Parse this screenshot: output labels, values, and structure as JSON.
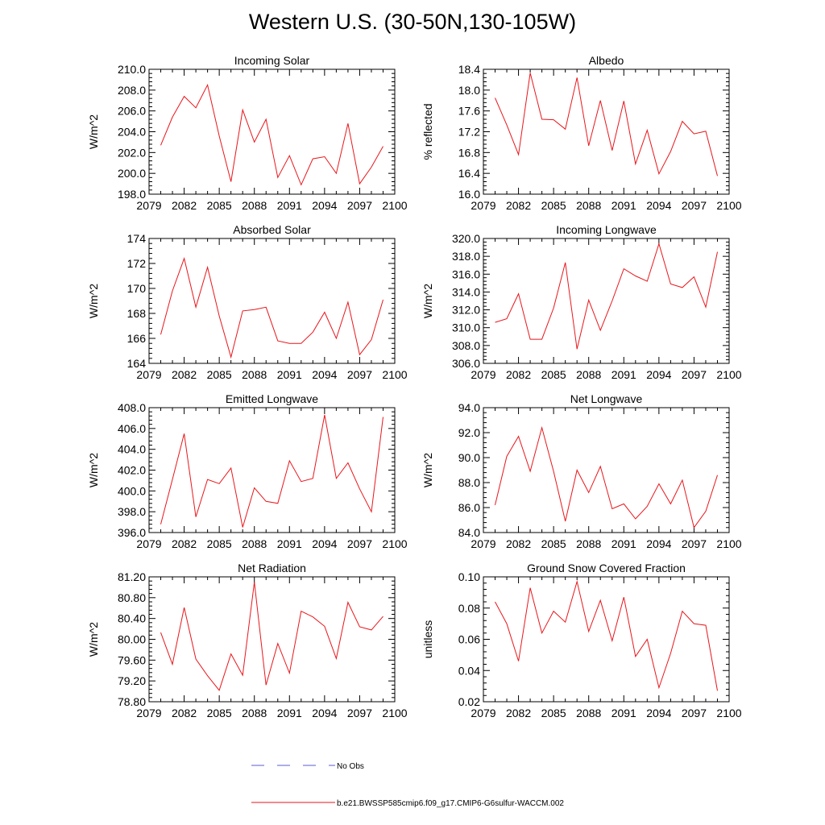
{
  "page_title": "Western U.S. (30-50N,130-105W)",
  "legend": {
    "obs_label": "No Obs",
    "obs_color": "#5b5bd6",
    "model_label": "b.e21.BWSSP585cmip6.f09_g17.CMIP6-G6sulfur-WACCM.002",
    "model_color": "#e8161b"
  },
  "chart_data": [
    {
      "type": "line",
      "title": "Incoming Solar",
      "ylabel": "W/m^2",
      "xlim": [
        2079,
        2100
      ],
      "xticks": [
        2079,
        2082,
        2085,
        2088,
        2091,
        2094,
        2097,
        2100
      ],
      "ylim": [
        198.0,
        210.0
      ],
      "yticks": [
        "198.0",
        "200.0",
        "202.0",
        "204.0",
        "206.0",
        "208.0",
        "210.0"
      ],
      "series": [
        {
          "x": [
            2080,
            2081,
            2082,
            2083,
            2084,
            2085,
            2086,
            2087,
            2088,
            2089,
            2090,
            2091,
            2092,
            2093,
            2094,
            2095,
            2096,
            2097,
            2098,
            2099
          ],
          "values": [
            202.7,
            205.4,
            207.4,
            206.3,
            208.5,
            203.6,
            199.2,
            206.1,
            203.0,
            205.2,
            199.6,
            201.7,
            198.9,
            201.4,
            201.6,
            200.0,
            204.8,
            199.0,
            200.6,
            202.6
          ]
        }
      ]
    },
    {
      "type": "line",
      "title": "Albedo",
      "ylabel": "% reflected",
      "xlim": [
        2079,
        2100
      ],
      "xticks": [
        2079,
        2082,
        2085,
        2088,
        2091,
        2094,
        2097,
        2100
      ],
      "ylim": [
        16.0,
        18.4
      ],
      "yticks": [
        "16.0",
        "16.4",
        "16.8",
        "17.2",
        "17.6",
        "18.0",
        "18.4"
      ],
      "series": [
        {
          "x": [
            2080,
            2081,
            2082,
            2083,
            2084,
            2085,
            2086,
            2087,
            2088,
            2089,
            2090,
            2091,
            2092,
            2093,
            2094,
            2095,
            2096,
            2097,
            2098,
            2099
          ],
          "values": [
            17.85,
            17.33,
            16.76,
            18.33,
            17.44,
            17.43,
            17.25,
            18.24,
            16.93,
            17.8,
            16.84,
            17.79,
            16.58,
            17.23,
            16.39,
            16.82,
            17.4,
            17.16,
            17.21,
            16.35
          ]
        }
      ]
    },
    {
      "type": "line",
      "title": "Absorbed Solar",
      "ylabel": "W/m^2",
      "xlim": [
        2079,
        2100
      ],
      "xticks": [
        2079,
        2082,
        2085,
        2088,
        2091,
        2094,
        2097,
        2100
      ],
      "ylim": [
        164,
        174
      ],
      "yticks": [
        "164",
        "166",
        "168",
        "170",
        "172",
        "174"
      ],
      "series": [
        {
          "x": [
            2080,
            2081,
            2082,
            2083,
            2084,
            2085,
            2086,
            2087,
            2088,
            2089,
            2090,
            2091,
            2092,
            2093,
            2094,
            2095,
            2096,
            2097,
            2098,
            2099
          ],
          "values": [
            166.3,
            169.8,
            172.4,
            168.5,
            171.7,
            167.8,
            164.5,
            168.2,
            168.3,
            168.5,
            165.8,
            165.6,
            165.6,
            166.5,
            168.1,
            166.0,
            168.9,
            164.7,
            165.9,
            169.1
          ]
        }
      ]
    },
    {
      "type": "line",
      "title": "Incoming Longwave",
      "ylabel": "W/m^2",
      "xlim": [
        2079,
        2100
      ],
      "xticks": [
        2079,
        2082,
        2085,
        2088,
        2091,
        2094,
        2097,
        2100
      ],
      "ylim": [
        306.0,
        320.0
      ],
      "yticks": [
        "306.0",
        "308.0",
        "310.0",
        "312.0",
        "314.0",
        "316.0",
        "318.0",
        "320.0"
      ],
      "series": [
        {
          "x": [
            2080,
            2081,
            2082,
            2083,
            2084,
            2085,
            2086,
            2087,
            2088,
            2089,
            2090,
            2091,
            2092,
            2093,
            2094,
            2095,
            2096,
            2097,
            2098,
            2099
          ],
          "values": [
            310.6,
            311.0,
            313.8,
            308.7,
            308.7,
            312.2,
            317.3,
            307.6,
            313.1,
            309.7,
            313.0,
            316.6,
            315.8,
            315.2,
            319.4,
            314.9,
            314.5,
            315.7,
            312.3,
            318.5
          ]
        }
      ]
    },
    {
      "type": "line",
      "title": "Emitted Longwave",
      "ylabel": "W/m^2",
      "xlim": [
        2079,
        2100
      ],
      "xticks": [
        2079,
        2082,
        2085,
        2088,
        2091,
        2094,
        2097,
        2100
      ],
      "ylim": [
        396.0,
        408.0
      ],
      "yticks": [
        "396.0",
        "398.0",
        "400.0",
        "402.0",
        "404.0",
        "406.0",
        "408.0"
      ],
      "series": [
        {
          "x": [
            2080,
            2081,
            2082,
            2083,
            2084,
            2085,
            2086,
            2087,
            2088,
            2089,
            2090,
            2091,
            2092,
            2093,
            2094,
            2095,
            2096,
            2097,
            2098,
            2099
          ],
          "values": [
            396.8,
            401.1,
            405.5,
            397.5,
            401.1,
            400.7,
            402.2,
            396.5,
            400.3,
            399.0,
            398.8,
            402.9,
            400.9,
            401.2,
            407.3,
            401.2,
            402.7,
            400.2,
            398.0,
            407.1
          ]
        }
      ]
    },
    {
      "type": "line",
      "title": "Net Longwave",
      "ylabel": "W/m^2",
      "xlim": [
        2079,
        2100
      ],
      "xticks": [
        2079,
        2082,
        2085,
        2088,
        2091,
        2094,
        2097,
        2100
      ],
      "ylim": [
        84.0,
        94.0
      ],
      "yticks": [
        "84.0",
        "86.0",
        "88.0",
        "90.0",
        "92.0",
        "94.0"
      ],
      "series": [
        {
          "x": [
            2080,
            2081,
            2082,
            2083,
            2084,
            2085,
            2086,
            2087,
            2088,
            2089,
            2090,
            2091,
            2092,
            2093,
            2094,
            2095,
            2096,
            2097,
            2098,
            2099
          ],
          "values": [
            86.2,
            90.1,
            91.7,
            88.9,
            92.4,
            88.9,
            84.9,
            89.0,
            87.2,
            89.3,
            85.9,
            86.3,
            85.1,
            86.1,
            87.9,
            86.3,
            88.2,
            84.4,
            85.7,
            88.6
          ]
        }
      ]
    },
    {
      "type": "line",
      "title": "Net Radiation",
      "ylabel": "W/m^2",
      "xlim": [
        2079,
        2100
      ],
      "xticks": [
        2079,
        2082,
        2085,
        2088,
        2091,
        2094,
        2097,
        2100
      ],
      "ylim": [
        78.8,
        81.2
      ],
      "yticks": [
        "78.80",
        "79.20",
        "79.60",
        "80.00",
        "80.40",
        "80.80",
        "81.20"
      ],
      "series": [
        {
          "x": [
            2080,
            2081,
            2082,
            2083,
            2084,
            2085,
            2086,
            2087,
            2088,
            2089,
            2090,
            2091,
            2092,
            2093,
            2094,
            2095,
            2096,
            2097,
            2098,
            2099
          ],
          "values": [
            80.13,
            79.52,
            80.61,
            79.62,
            79.3,
            79.02,
            79.72,
            79.31,
            81.1,
            79.12,
            79.92,
            79.35,
            80.54,
            80.43,
            80.25,
            79.63,
            80.71,
            80.24,
            80.18,
            80.44
          ]
        }
      ]
    },
    {
      "type": "line",
      "title": "Ground Snow Covered Fraction",
      "ylabel": "unitless",
      "xlim": [
        2079,
        2100
      ],
      "xticks": [
        2079,
        2082,
        2085,
        2088,
        2091,
        2094,
        2097,
        2100
      ],
      "ylim": [
        0.02,
        0.1
      ],
      "yticks": [
        "0.02",
        "0.04",
        "0.06",
        "0.08",
        "0.10"
      ],
      "series": [
        {
          "x": [
            2080,
            2081,
            2082,
            2083,
            2084,
            2085,
            2086,
            2087,
            2088,
            2089,
            2090,
            2091,
            2092,
            2093,
            2094,
            2095,
            2096,
            2097,
            2098,
            2099
          ],
          "values": [
            0.084,
            0.07,
            0.046,
            0.093,
            0.064,
            0.078,
            0.071,
            0.097,
            0.065,
            0.085,
            0.059,
            0.087,
            0.049,
            0.06,
            0.029,
            0.051,
            0.078,
            0.07,
            0.069,
            0.027
          ]
        }
      ]
    }
  ]
}
